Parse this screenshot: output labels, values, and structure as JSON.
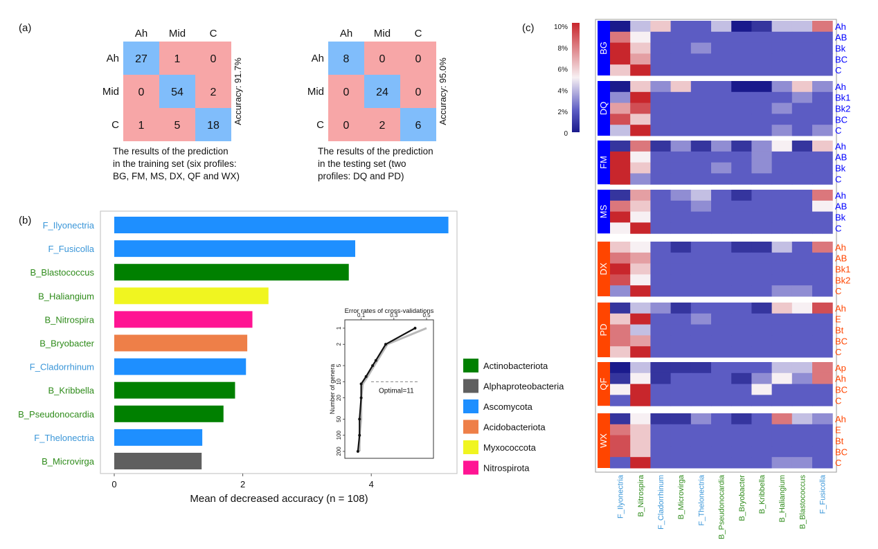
{
  "panels": {
    "a": {
      "label": "(a)",
      "matrices": [
        {
          "columns": [
            "Ah",
            "Mid",
            "C"
          ],
          "rows": [
            "Ah",
            "Mid",
            "C"
          ],
          "values": [
            [
              27,
              1,
              0
            ],
            [
              0,
              54,
              2
            ],
            [
              1,
              5,
              18
            ]
          ],
          "accuracy_label": "Accuracy: 91.7%",
          "caption": [
            "The results of the prediction",
            "in the training set (six profiles:",
            "BG, FM, MS, DX, QF and WX)"
          ]
        },
        {
          "columns": [
            "Ah",
            "Mid",
            "C"
          ],
          "rows": [
            "Ah",
            "Mid",
            "C"
          ],
          "values": [
            [
              8,
              0,
              0
            ],
            [
              0,
              24,
              0
            ],
            [
              0,
              2,
              6
            ]
          ],
          "accuracy_label": "Accuracy: 95.0%",
          "caption": [
            "The results of the prediction",
            "in the testing set (two",
            "profiles: DQ and PD)"
          ]
        }
      ],
      "colors": {
        "diagonal": "#80bdfb",
        "off_diagonal": "#f7a6a7"
      }
    },
    "b": {
      "label": "(b)",
      "xlabel": "Mean of decreased accuracy (n = 108)",
      "legend": [
        {
          "name": "Actinobacteriota",
          "color": "#008000"
        },
        {
          "name": "Alphaproteobacteria",
          "color": "#5f5f5f"
        },
        {
          "name": "Ascomycota",
          "color": "#1e8fff"
        },
        {
          "name": "Acidobacteriota",
          "color": "#ee7f48"
        },
        {
          "name": "Myxococcota",
          "color": "#f0f520"
        },
        {
          "name": "Nitrospirota",
          "color": "#ff1493"
        }
      ],
      "inset": {
        "title": "Error rates of cross-validations",
        "ylabel": "Number of genera",
        "x_ticks": [
          "0.1",
          "0.3",
          "0.5"
        ],
        "y_ticks": [
          "1",
          "2",
          "5",
          "10",
          "20",
          "50",
          "100",
          "200"
        ],
        "optimal_label": "Optimal=11"
      }
    },
    "c": {
      "label": "(c)",
      "colorbar": {
        "ticks": [
          "10%",
          "8%",
          "6%",
          "4%",
          "2%",
          "0"
        ],
        "colors": [
          "#c8262c",
          "#f7f0f3",
          "#1a1a8c"
        ]
      },
      "columns": [
        "F_Ilyonectria",
        "B_Nitrospira",
        "F_Cladorrhinum",
        "B_Microvirga",
        "F_Thelonectria",
        "B_Pseudonocardia",
        "B_Bryobacter",
        "B_Kribbella",
        "B_Haliangium",
        "B_Blastococcus",
        "F_Fusicolla"
      ],
      "column_groups": [
        "F",
        "B",
        "F",
        "B",
        "F",
        "B",
        "B",
        "B",
        "B",
        "B",
        "F"
      ],
      "profile_colors": {
        "blue": "#0000ff",
        "orange": "#ff4500"
      },
      "groups": [
        {
          "name": "BG",
          "color": "blue",
          "rows": [
            {
              "label": "Ah",
              "values": [
                0,
                4,
                6,
                2,
                2,
                4,
                0,
                1,
                4,
                4,
                8
              ]
            },
            {
              "label": "AB",
              "values": [
                8,
                5,
                2,
                2,
                2,
                2,
                2,
                2,
                2,
                2,
                2
              ]
            },
            {
              "label": "Bk",
              "values": [
                10,
                6,
                2,
                2,
                3,
                2,
                2,
                2,
                2,
                2,
                2
              ]
            },
            {
              "label": "BC",
              "values": [
                10,
                7,
                2,
                2,
                2,
                2,
                2,
                2,
                2,
                2,
                2
              ]
            },
            {
              "label": "C",
              "values": [
                6,
                10,
                2,
                2,
                2,
                2,
                2,
                2,
                2,
                2,
                2
              ]
            }
          ]
        },
        {
          "name": "DQ",
          "color": "blue",
          "rows": [
            {
              "label": "Ah",
              "values": [
                0,
                6,
                3,
                6,
                2,
                2,
                0,
                0,
                3,
                6,
                3
              ]
            },
            {
              "label": "Bk1",
              "values": [
                3,
                10,
                2,
                2,
                2,
                2,
                2,
                2,
                2,
                3,
                2
              ]
            },
            {
              "label": "Bk2",
              "values": [
                7,
                9,
                2,
                2,
                2,
                2,
                2,
                2,
                3,
                2,
                2
              ]
            },
            {
              "label": "BC",
              "values": [
                9,
                6,
                2,
                2,
                2,
                2,
                2,
                2,
                2,
                2,
                2
              ]
            },
            {
              "label": "C",
              "values": [
                4,
                10,
                2,
                2,
                2,
                2,
                2,
                2,
                3,
                2,
                3
              ]
            }
          ]
        },
        {
          "name": "FM",
          "color": "blue",
          "rows": [
            {
              "label": "Ah",
              "values": [
                1,
                8,
                1,
                3,
                1,
                3,
                1,
                3,
                5,
                1,
                6
              ]
            },
            {
              "label": "AB",
              "values": [
                10,
                5,
                2,
                2,
                2,
                2,
                2,
                3,
                2,
                2,
                2
              ]
            },
            {
              "label": "Bk",
              "values": [
                10,
                6,
                2,
                2,
                2,
                3,
                2,
                3,
                2,
                2,
                2
              ]
            },
            {
              "label": "C",
              "values": [
                10,
                3,
                2,
                2,
                2,
                2,
                2,
                2,
                2,
                2,
                2
              ]
            }
          ]
        },
        {
          "name": "MS",
          "color": "blue",
          "rows": [
            {
              "label": "Ah",
              "values": [
                1,
                7,
                2,
                3,
                4,
                2,
                1,
                2,
                2,
                2,
                8
              ]
            },
            {
              "label": "AB",
              "values": [
                8,
                6,
                2,
                2,
                3,
                2,
                2,
                2,
                2,
                2,
                5
              ]
            },
            {
              "label": "Bk",
              "values": [
                10,
                5,
                2,
                2,
                2,
                2,
                2,
                2,
                2,
                2,
                2
              ]
            },
            {
              "label": "C",
              "values": [
                5,
                10,
                2,
                2,
                2,
                2,
                2,
                2,
                2,
                2,
                2
              ]
            }
          ]
        },
        {
          "name": "DX",
          "color": "orange",
          "rows": [
            {
              "label": "Ah",
              "values": [
                6,
                5,
                2,
                1,
                2,
                2,
                1,
                1,
                4,
                2,
                8
              ]
            },
            {
              "label": "AB",
              "values": [
                8,
                7,
                2,
                2,
                2,
                2,
                2,
                2,
                2,
                2,
                2
              ]
            },
            {
              "label": "Bk1",
              "values": [
                10,
                6,
                2,
                2,
                2,
                2,
                2,
                2,
                2,
                2,
                2
              ]
            },
            {
              "label": "Bk2",
              "values": [
                9,
                5,
                2,
                2,
                2,
                2,
                2,
                2,
                2,
                2,
                2
              ]
            },
            {
              "label": "C",
              "values": [
                3,
                10,
                2,
                2,
                2,
                2,
                2,
                2,
                3,
                3,
                2
              ]
            }
          ]
        },
        {
          "name": "PD",
          "color": "orange",
          "rows": [
            {
              "label": "Ah",
              "values": [
                1,
                4,
                3,
                1,
                2,
                2,
                2,
                1,
                6,
                5,
                9
              ]
            },
            {
              "label": "E",
              "values": [
                6,
                10,
                2,
                2,
                3,
                2,
                2,
                2,
                2,
                2,
                2
              ]
            },
            {
              "label": "Bt",
              "values": [
                8,
                4,
                2,
                2,
                2,
                2,
                2,
                2,
                2,
                2,
                2
              ]
            },
            {
              "label": "BC",
              "values": [
                8,
                7,
                2,
                2,
                2,
                2,
                2,
                2,
                2,
                2,
                2
              ]
            },
            {
              "label": "C",
              "values": [
                6,
                10,
                2,
                2,
                2,
                2,
                2,
                2,
                2,
                2,
                2
              ]
            }
          ]
        },
        {
          "name": "QF",
          "color": "orange",
          "rows": [
            {
              "label": "Ap",
              "values": [
                0,
                4,
                1,
                1,
                1,
                2,
                2,
                2,
                4,
                4,
                8
              ]
            },
            {
              "label": "Ah",
              "values": [
                1,
                5,
                1,
                2,
                2,
                2,
                1,
                3,
                5,
                3,
                8
              ]
            },
            {
              "label": "BC",
              "values": [
                5,
                10,
                2,
                2,
                2,
                2,
                2,
                5,
                2,
                2,
                2
              ]
            },
            {
              "label": "C",
              "values": [
                2,
                10,
                2,
                2,
                2,
                2,
                2,
                2,
                2,
                2,
                2
              ]
            }
          ]
        },
        {
          "name": "WX",
          "color": "orange",
          "rows": [
            {
              "label": "Ah",
              "values": [
                1,
                5,
                1,
                1,
                3,
                2,
                1,
                2,
                8,
                4,
                3
              ]
            },
            {
              "label": "E",
              "values": [
                8,
                6,
                2,
                2,
                2,
                2,
                2,
                2,
                2,
                2,
                2
              ]
            },
            {
              "label": "Bt",
              "values": [
                9,
                6,
                2,
                2,
                2,
                2,
                2,
                2,
                2,
                2,
                2
              ]
            },
            {
              "label": "BC",
              "values": [
                9,
                6,
                2,
                2,
                2,
                2,
                2,
                2,
                2,
                2,
                2
              ]
            },
            {
              "label": "C",
              "values": [
                2,
                10,
                2,
                2,
                2,
                2,
                2,
                2,
                3,
                3,
                2
              ]
            }
          ]
        }
      ]
    }
  },
  "chart_data": [
    {
      "type": "bar",
      "orientation": "horizontal",
      "categories": [
        "F_Ilyonectria",
        "F_Fusicolla",
        "B_Blastococcus",
        "B_Haliangium",
        "B_Nitrospira",
        "B_Bryobacter",
        "F_Cladorrhinum",
        "B_Kribbella",
        "B_Pseudonocardia",
        "F_Thelonectria",
        "B_Microvirga"
      ],
      "values": [
        5.2,
        3.75,
        3.65,
        2.4,
        2.15,
        2.07,
        2.05,
        1.88,
        1.7,
        1.37,
        1.36
      ],
      "phyla": [
        "Ascomycota",
        "Ascomycota",
        "Actinobacteriota",
        "Myxococcota",
        "Nitrospirota",
        "Acidobacteriota",
        "Ascomycota",
        "Actinobacteriota",
        "Actinobacteriota",
        "Ascomycota",
        "Alphaproteobacteria"
      ],
      "xlabel": "Mean of decreased accuracy (n = 108)",
      "x_ticks": [
        0,
        2,
        4
      ],
      "xlim": [
        -0.1,
        5.3
      ]
    },
    {
      "type": "line",
      "title": "Error rates of cross-validations",
      "ylabel": "Number of genera",
      "xlim": [
        0.05,
        0.55
      ],
      "n_genera": [
        1,
        2,
        4,
        5,
        8,
        11,
        20,
        50,
        100,
        200
      ],
      "series": [
        {
          "x": [
            0.43,
            0.25,
            0.19,
            0.17,
            0.13,
            0.1,
            0.1,
            0.09,
            0.09,
            0.08
          ]
        },
        {
          "x": [
            0.5,
            0.26,
            0.2,
            0.18,
            0.14,
            0.11,
            0.1,
            0.1,
            0.09,
            0.09
          ]
        }
      ],
      "annotation": "Optimal=11"
    }
  ]
}
